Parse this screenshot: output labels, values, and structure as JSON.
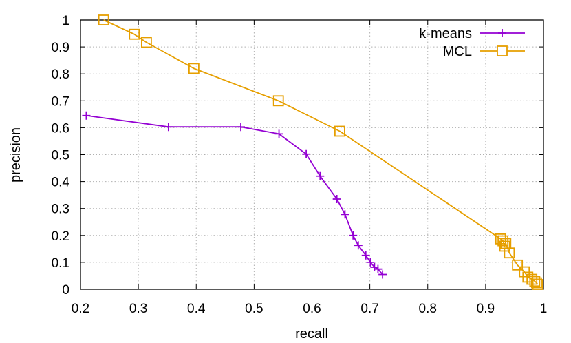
{
  "chart_data": {
    "type": "line",
    "title": "",
    "xlabel": "recall",
    "ylabel": "precision",
    "xlim": [
      0.2,
      1.0
    ],
    "ylim": [
      0,
      1.0
    ],
    "xticks": [
      "0.2",
      "0.3",
      "0.4",
      "0.5",
      "0.6",
      "0.7",
      "0.8",
      "0.9",
      "1"
    ],
    "yticks": [
      "0",
      "0.1",
      "0.2",
      "0.3",
      "0.4",
      "0.5",
      "0.6",
      "0.7",
      "0.8",
      "0.9",
      "1"
    ],
    "grid": true,
    "legend_position": "top-right",
    "series": [
      {
        "name": "k-means",
        "color": "#9400d3",
        "marker": "plus",
        "points": [
          [
            0.21,
            0.645
          ],
          [
            0.352,
            0.603
          ],
          [
            0.477,
            0.603
          ],
          [
            0.543,
            0.577
          ],
          [
            0.59,
            0.502
          ],
          [
            0.614,
            0.42
          ],
          [
            0.643,
            0.335
          ],
          [
            0.657,
            0.278
          ],
          [
            0.671,
            0.2
          ],
          [
            0.68,
            0.163
          ],
          [
            0.693,
            0.126
          ],
          [
            0.701,
            0.1
          ],
          [
            0.708,
            0.082
          ],
          [
            0.714,
            0.075
          ],
          [
            0.722,
            0.055
          ]
        ]
      },
      {
        "name": "MCL",
        "color": "#e69f00",
        "marker": "square",
        "points": [
          [
            0.24,
            1.0
          ],
          [
            0.293,
            0.947
          ],
          [
            0.314,
            0.917
          ],
          [
            0.396,
            0.82
          ],
          [
            0.542,
            0.7
          ],
          [
            0.648,
            0.587
          ],
          [
            0.926,
            0.187
          ],
          [
            0.93,
            0.18
          ],
          [
            0.933,
            0.16
          ],
          [
            0.935,
            0.17
          ],
          [
            0.941,
            0.135
          ],
          [
            0.955,
            0.09
          ],
          [
            0.967,
            0.065
          ],
          [
            0.973,
            0.045
          ],
          [
            0.98,
            0.037
          ],
          [
            0.985,
            0.03
          ],
          [
            0.988,
            0.024
          ],
          [
            0.99,
            0.018
          ]
        ]
      }
    ]
  }
}
